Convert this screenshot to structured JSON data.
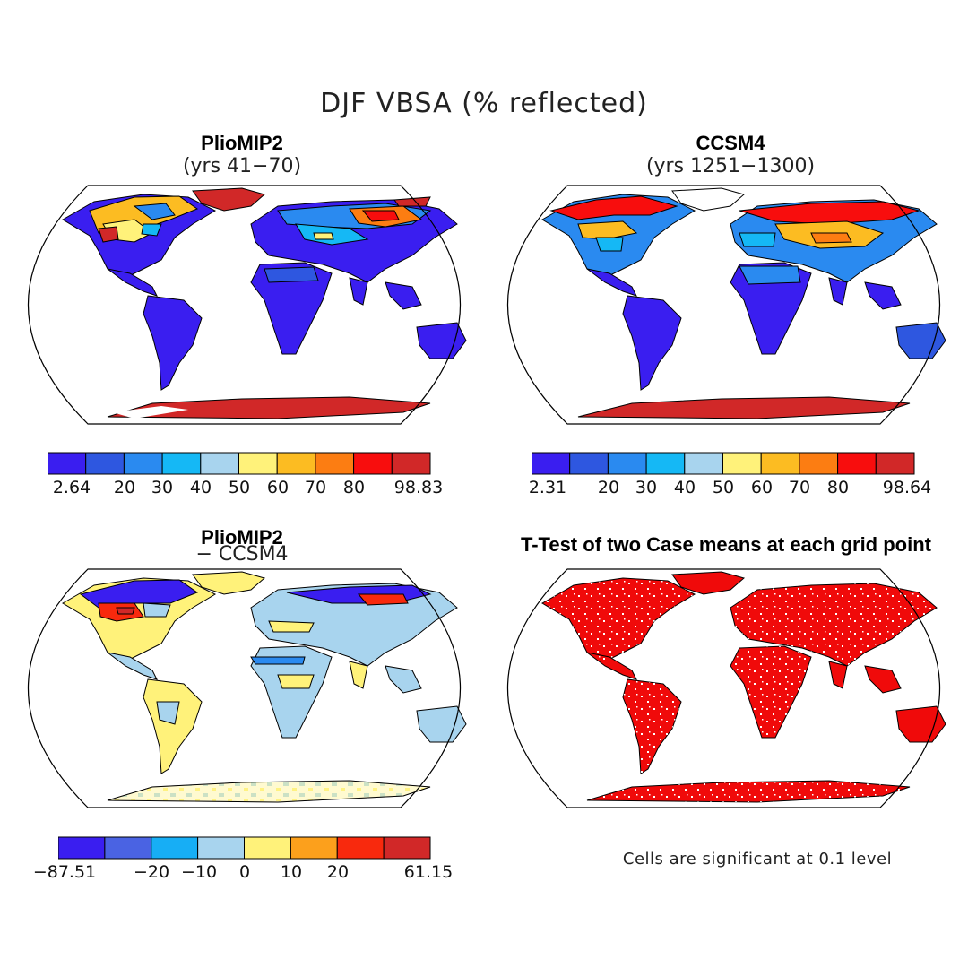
{
  "figure": {
    "title": "DJF VBSA (% reflected)"
  },
  "panels": {
    "p1": {
      "title": "PlioMIP2",
      "subtitle": "(yrs 41−70)",
      "colorbar": {
        "colors": [
          "#3a1ef0",
          "#2e57e0",
          "#2a8af0",
          "#15b8f5",
          "#a8d4ee",
          "#fff27a",
          "#fcbc22",
          "#fc7d12",
          "#f80d0d",
          "#d12828"
        ],
        "ticks": [
          "2.64",
          "20",
          "30",
          "40",
          "50",
          "60",
          "70",
          "80",
          "98.83"
        ]
      }
    },
    "p2": {
      "title": "CCSM4",
      "subtitle": "(yrs 1251−1300)",
      "colorbar": {
        "colors": [
          "#3a1ef0",
          "#2e57e0",
          "#2a8af0",
          "#15b8f5",
          "#a8d4ee",
          "#fff27a",
          "#fcbc22",
          "#fc7d12",
          "#f80d0d",
          "#d12828"
        ],
        "ticks": [
          "2.31",
          "20",
          "30",
          "40",
          "50",
          "60",
          "70",
          "80",
          "98.64"
        ]
      }
    },
    "p3": {
      "title": "PlioMIP2",
      "subtitle": "− CCSM4",
      "colorbar": {
        "colors": [
          "#3a1ef0",
          "#4a63e3",
          "#17aef5",
          "#a8d4ee",
          "#fff27a",
          "#fca01c",
          "#f8290d",
          "#d12828"
        ],
        "ticks": [
          "−87.51",
          "−20",
          "−10",
          "0",
          "10",
          "20",
          "61.15"
        ]
      }
    },
    "p4": {
      "title": "T-Test of two Case means at each grid point",
      "note": "Cells are significant at 0.1 level",
      "fill_color": "#f00a0a"
    }
  }
}
